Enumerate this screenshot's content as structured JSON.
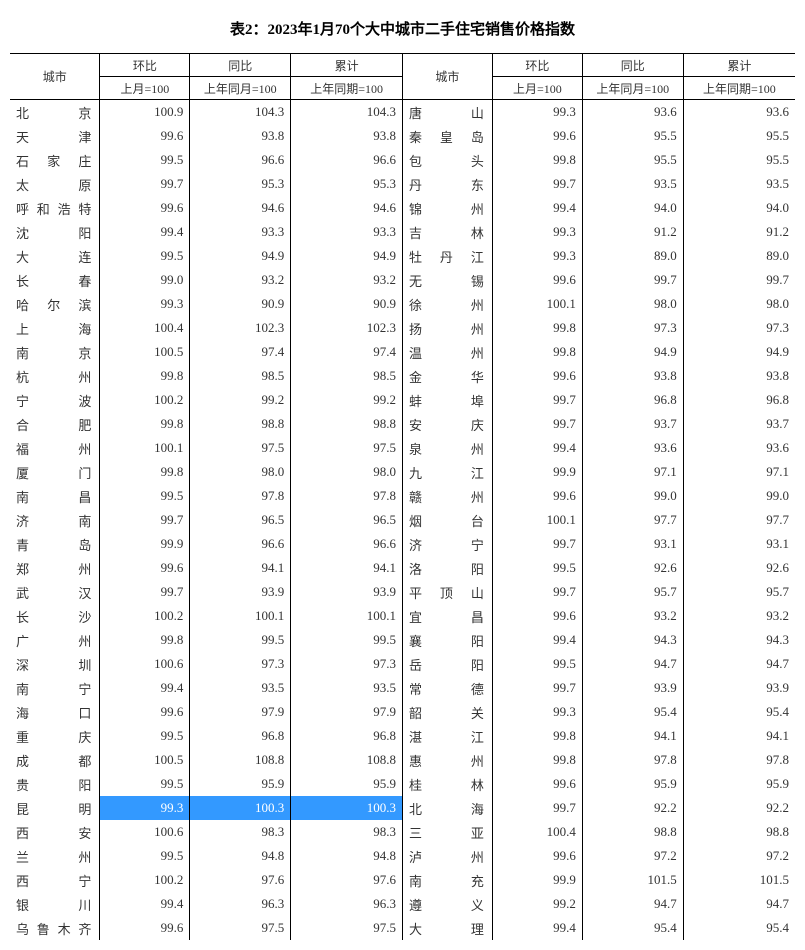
{
  "title": "表2：2023年1月70个大中城市二手住宅销售价格指数",
  "headers": {
    "city": "城市",
    "mom": "环比",
    "yoy": "同比",
    "cum": "累计",
    "mom_sub": "上月=100",
    "yoy_sub": "上年同月=100",
    "cum_sub": "上年同期=100"
  },
  "highlight_row": 29,
  "colors": {
    "highlight_bg": "#3399ff",
    "highlight_fg": "#ffffff",
    "text": "#333333",
    "border": "#000000",
    "background": "#ffffff"
  },
  "left": [
    {
      "city": "北京",
      "mom": "100.9",
      "yoy": "104.3",
      "cum": "104.3"
    },
    {
      "city": "天津",
      "mom": "99.6",
      "yoy": "93.8",
      "cum": "93.8"
    },
    {
      "city": "石家庄",
      "mom": "99.5",
      "yoy": "96.6",
      "cum": "96.6"
    },
    {
      "city": "太原",
      "mom": "99.7",
      "yoy": "95.3",
      "cum": "95.3"
    },
    {
      "city": "呼和浩特",
      "mom": "99.6",
      "yoy": "94.6",
      "cum": "94.6"
    },
    {
      "city": "沈阳",
      "mom": "99.4",
      "yoy": "93.3",
      "cum": "93.3"
    },
    {
      "city": "大连",
      "mom": "99.5",
      "yoy": "94.9",
      "cum": "94.9"
    },
    {
      "city": "长春",
      "mom": "99.0",
      "yoy": "93.2",
      "cum": "93.2"
    },
    {
      "city": "哈尔滨",
      "mom": "99.3",
      "yoy": "90.9",
      "cum": "90.9"
    },
    {
      "city": "上海",
      "mom": "100.4",
      "yoy": "102.3",
      "cum": "102.3"
    },
    {
      "city": "南京",
      "mom": "100.5",
      "yoy": "97.4",
      "cum": "97.4"
    },
    {
      "city": "杭州",
      "mom": "99.8",
      "yoy": "98.5",
      "cum": "98.5"
    },
    {
      "city": "宁波",
      "mom": "100.2",
      "yoy": "99.2",
      "cum": "99.2"
    },
    {
      "city": "合肥",
      "mom": "99.8",
      "yoy": "98.8",
      "cum": "98.8"
    },
    {
      "city": "福州",
      "mom": "100.1",
      "yoy": "97.5",
      "cum": "97.5"
    },
    {
      "city": "厦门",
      "mom": "99.8",
      "yoy": "98.0",
      "cum": "98.0"
    },
    {
      "city": "南昌",
      "mom": "99.5",
      "yoy": "97.8",
      "cum": "97.8"
    },
    {
      "city": "济南",
      "mom": "99.7",
      "yoy": "96.5",
      "cum": "96.5"
    },
    {
      "city": "青岛",
      "mom": "99.9",
      "yoy": "96.6",
      "cum": "96.6"
    },
    {
      "city": "郑州",
      "mom": "99.6",
      "yoy": "94.1",
      "cum": "94.1"
    },
    {
      "city": "武汉",
      "mom": "99.7",
      "yoy": "93.9",
      "cum": "93.9"
    },
    {
      "city": "长沙",
      "mom": "100.2",
      "yoy": "100.1",
      "cum": "100.1"
    },
    {
      "city": "广州",
      "mom": "99.8",
      "yoy": "99.5",
      "cum": "99.5"
    },
    {
      "city": "深圳",
      "mom": "100.6",
      "yoy": "97.3",
      "cum": "97.3"
    },
    {
      "city": "南宁",
      "mom": "99.4",
      "yoy": "93.5",
      "cum": "93.5"
    },
    {
      "city": "海口",
      "mom": "99.6",
      "yoy": "97.9",
      "cum": "97.9"
    },
    {
      "city": "重庆",
      "mom": "99.5",
      "yoy": "96.8",
      "cum": "96.8"
    },
    {
      "city": "成都",
      "mom": "100.5",
      "yoy": "108.8",
      "cum": "108.8"
    },
    {
      "city": "贵阳",
      "mom": "99.5",
      "yoy": "95.9",
      "cum": "95.9"
    },
    {
      "city": "昆明",
      "mom": "99.3",
      "yoy": "100.3",
      "cum": "100.3"
    },
    {
      "city": "西安",
      "mom": "100.6",
      "yoy": "98.3",
      "cum": "98.3"
    },
    {
      "city": "兰州",
      "mom": "99.5",
      "yoy": "94.8",
      "cum": "94.8"
    },
    {
      "city": "西宁",
      "mom": "100.2",
      "yoy": "97.6",
      "cum": "97.6"
    },
    {
      "city": "银川",
      "mom": "99.4",
      "yoy": "96.3",
      "cum": "96.3"
    },
    {
      "city": "乌鲁木齐",
      "mom": "99.6",
      "yoy": "97.5",
      "cum": "97.5"
    }
  ],
  "right": [
    {
      "city": "唐山",
      "mom": "99.3",
      "yoy": "93.6",
      "cum": "93.6"
    },
    {
      "city": "秦皇岛",
      "mom": "99.6",
      "yoy": "95.5",
      "cum": "95.5"
    },
    {
      "city": "包头",
      "mom": "99.8",
      "yoy": "95.5",
      "cum": "95.5"
    },
    {
      "city": "丹东",
      "mom": "99.7",
      "yoy": "93.5",
      "cum": "93.5"
    },
    {
      "city": "锦州",
      "mom": "99.4",
      "yoy": "94.0",
      "cum": "94.0"
    },
    {
      "city": "吉林",
      "mom": "99.3",
      "yoy": "91.2",
      "cum": "91.2"
    },
    {
      "city": "牡丹江",
      "mom": "99.3",
      "yoy": "89.0",
      "cum": "89.0"
    },
    {
      "city": "无锡",
      "mom": "99.6",
      "yoy": "99.7",
      "cum": "99.7"
    },
    {
      "city": "徐州",
      "mom": "100.1",
      "yoy": "98.0",
      "cum": "98.0"
    },
    {
      "city": "扬州",
      "mom": "99.8",
      "yoy": "97.3",
      "cum": "97.3"
    },
    {
      "city": "温州",
      "mom": "99.8",
      "yoy": "94.9",
      "cum": "94.9"
    },
    {
      "city": "金华",
      "mom": "99.6",
      "yoy": "93.8",
      "cum": "93.8"
    },
    {
      "city": "蚌埠",
      "mom": "99.7",
      "yoy": "96.8",
      "cum": "96.8"
    },
    {
      "city": "安庆",
      "mom": "99.7",
      "yoy": "93.7",
      "cum": "93.7"
    },
    {
      "city": "泉州",
      "mom": "99.4",
      "yoy": "93.6",
      "cum": "93.6"
    },
    {
      "city": "九江",
      "mom": "99.9",
      "yoy": "97.1",
      "cum": "97.1"
    },
    {
      "city": "赣州",
      "mom": "99.6",
      "yoy": "99.0",
      "cum": "99.0"
    },
    {
      "city": "烟台",
      "mom": "100.1",
      "yoy": "97.7",
      "cum": "97.7"
    },
    {
      "city": "济宁",
      "mom": "99.7",
      "yoy": "93.1",
      "cum": "93.1"
    },
    {
      "city": "洛阳",
      "mom": "99.5",
      "yoy": "92.6",
      "cum": "92.6"
    },
    {
      "city": "平顶山",
      "mom": "99.7",
      "yoy": "95.7",
      "cum": "95.7"
    },
    {
      "city": "宜昌",
      "mom": "99.6",
      "yoy": "93.2",
      "cum": "93.2"
    },
    {
      "city": "襄阳",
      "mom": "99.4",
      "yoy": "94.3",
      "cum": "94.3"
    },
    {
      "city": "岳阳",
      "mom": "99.5",
      "yoy": "94.7",
      "cum": "94.7"
    },
    {
      "city": "常德",
      "mom": "99.7",
      "yoy": "93.9",
      "cum": "93.9"
    },
    {
      "city": "韶关",
      "mom": "99.3",
      "yoy": "95.4",
      "cum": "95.4"
    },
    {
      "city": "湛江",
      "mom": "99.8",
      "yoy": "94.1",
      "cum": "94.1"
    },
    {
      "city": "惠州",
      "mom": "99.8",
      "yoy": "97.8",
      "cum": "97.8"
    },
    {
      "city": "桂林",
      "mom": "99.6",
      "yoy": "95.9",
      "cum": "95.9"
    },
    {
      "city": "北海",
      "mom": "99.7",
      "yoy": "92.2",
      "cum": "92.2"
    },
    {
      "city": "三亚",
      "mom": "100.4",
      "yoy": "98.8",
      "cum": "98.8"
    },
    {
      "city": "泸州",
      "mom": "99.6",
      "yoy": "97.2",
      "cum": "97.2"
    },
    {
      "city": "南充",
      "mom": "99.9",
      "yoy": "101.5",
      "cum": "101.5"
    },
    {
      "city": "遵义",
      "mom": "99.2",
      "yoy": "94.7",
      "cum": "94.7"
    },
    {
      "city": "大理",
      "mom": "99.4",
      "yoy": "95.4",
      "cum": "95.4"
    }
  ]
}
